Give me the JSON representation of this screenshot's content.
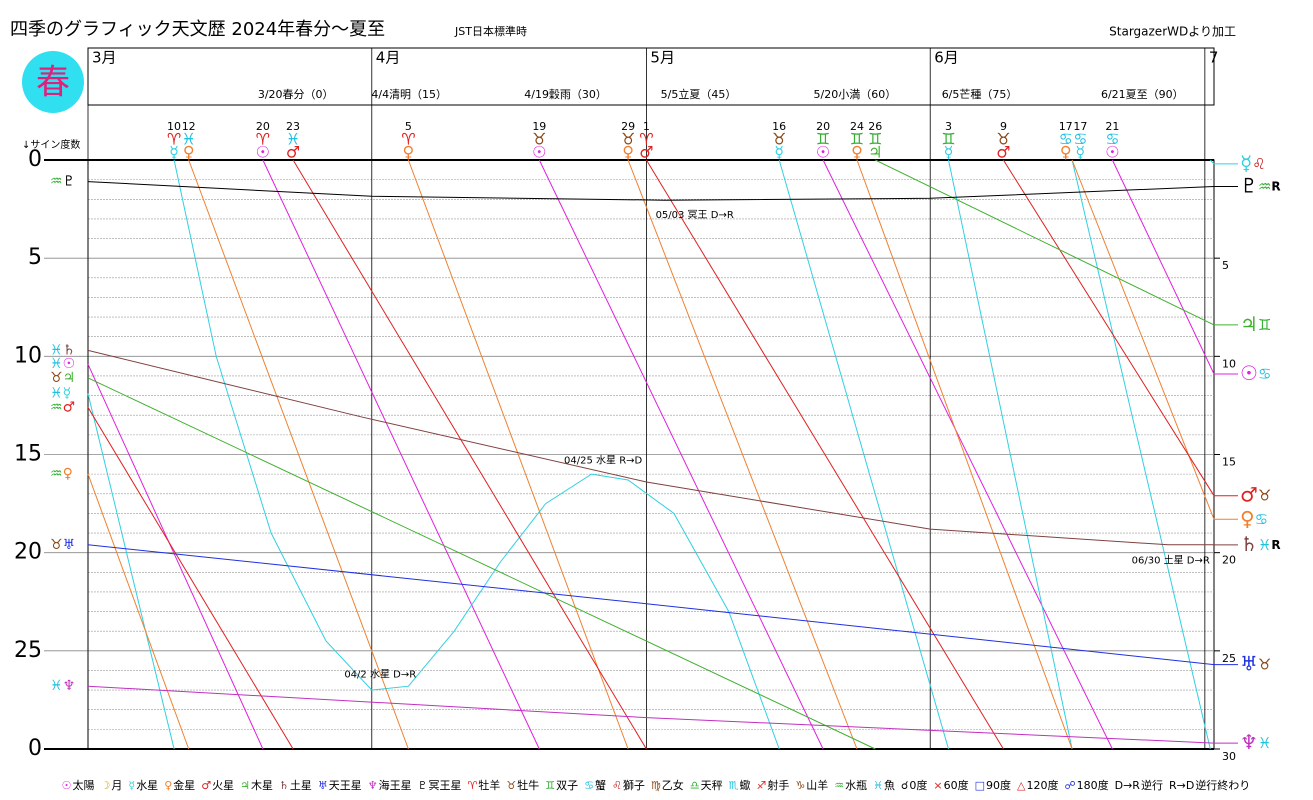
{
  "header": {
    "title": "四季のグラフィック天文歴 2024年春分～夏至",
    "timezone": "JST日本標準時",
    "credit": "StargazerWDより加工",
    "season": "春"
  },
  "chart_data": {
    "type": "line",
    "y_axis_label": "↓サイン度数",
    "xlim": [
      0,
      123
    ],
    "xticks": [
      {
        "value": 0,
        "label": "3月"
      },
      {
        "value": 31,
        "label": "4月"
      },
      {
        "value": 61,
        "label": "5月"
      },
      {
        "value": 92,
        "label": "6月"
      },
      {
        "value": 122,
        "label": "7"
      }
    ],
    "ylim": [
      0,
      30
    ],
    "y_inverted": true,
    "yticks": [
      0,
      5,
      10,
      15,
      20,
      25,
      {
        "value": 30,
        "label": "0"
      }
    ],
    "minor_yticks": [
      1,
      2,
      3,
      4,
      6,
      7,
      8,
      9,
      11,
      12,
      13,
      14,
      16,
      17,
      18,
      19,
      21,
      22,
      23,
      24,
      26,
      27,
      28,
      29
    ],
    "y2lim": [
      0,
      30
    ],
    "y2ticks": [
      5,
      10,
      15,
      20,
      25,
      30
    ],
    "solar_terms": [
      {
        "label": "3/20春分（0）",
        "x": 19.1
      },
      {
        "label": "4/4清明（15）",
        "x": 31.5
      },
      {
        "label": "4/19穀雨（30）",
        "x": 48.2
      },
      {
        "label": "5/5立夏（45）",
        "x": 63.1
      },
      {
        "label": "5/20小満（60）",
        "x": 79.8
      },
      {
        "label": "6/5芒種（75）",
        "x": 93.8
      },
      {
        "label": "6/21夏至（90）",
        "x": 111.2
      }
    ],
    "sign_colors": {
      "♈": "#e02020",
      "♉": "#8b4513",
      "♊": "#30b030",
      "♋": "#20c0e0",
      "♌": "#c02020",
      "♍": "#8b4513",
      "♎": "#30b030",
      "♏": "#20c0e0",
      "♐": "#e02020",
      "♑": "#8b4513",
      "♒": "#30b030",
      "♓": "#20c0e0"
    },
    "ingresses": [
      {
        "day": "10",
        "sign": "♈",
        "planet": "☿",
        "x": 9.4
      },
      {
        "day": "12",
        "sign": "♓",
        "planet": "♀",
        "x": 11
      },
      {
        "day": "20",
        "sign": "♈",
        "planet": "☉",
        "x": 19.1
      },
      {
        "day": "23",
        "sign": "♓",
        "planet": "♂",
        "x": 22.4
      },
      {
        "day": "5",
        "sign": "♈",
        "planet": "♀",
        "x": 35
      },
      {
        "day": "19",
        "sign": "♉",
        "planet": "☉",
        "x": 49.3
      },
      {
        "day": "29",
        "sign": "♉",
        "planet": "♀",
        "x": 59
      },
      {
        "day": "1",
        "sign": "♈",
        "planet": "♂",
        "x": 61
      },
      {
        "day": "16",
        "sign": "♉",
        "planet": "☿",
        "x": 75.5
      },
      {
        "day": "20",
        "sign": "♊",
        "planet": "☉",
        "x": 80.3
      },
      {
        "day": "24",
        "sign": "♊",
        "planet": "♀",
        "x": 84
      },
      {
        "day": "26",
        "sign": "♊",
        "planet": "♃",
        "x": 86
      },
      {
        "day": "3",
        "sign": "♊",
        "planet": "☿",
        "x": 94
      },
      {
        "day": "9",
        "sign": "♉",
        "planet": "♂",
        "x": 100
      },
      {
        "day": "17",
        "sign": "♋",
        "planet": "♀",
        "x": 106.8
      },
      {
        "day": "17",
        "sign": "♋",
        "planet": "☿",
        "x": 108.4
      },
      {
        "day": "21",
        "sign": "♋",
        "planet": "☉",
        "x": 111.9
      }
    ],
    "series": [
      {
        "symbol": "☉",
        "color": "#e020e0",
        "start_sign": "♓",
        "end_sign": "♋",
        "x": [
          0,
          19.1,
          19.1,
          19.1,
          49.3,
          49.3,
          49.3,
          80.3,
          80.3,
          80.3,
          111.9,
          111.9,
          111.9,
          123
        ],
        "values": [
          10.4,
          30,
          null,
          0,
          30,
          null,
          0,
          30,
          null,
          0,
          30,
          null,
          0,
          10.9
        ]
      },
      {
        "symbol": "☿",
        "color": "#30d0e0",
        "start_sign": "♓",
        "end_sign": "♌",
        "x": [
          0,
          9.4,
          9.4,
          9.4,
          14,
          20,
          26,
          31,
          35,
          40,
          45,
          50,
          55,
          59,
          64,
          70,
          75.5,
          75.5,
          75.5,
          94,
          94,
          94,
          107.5,
          107.5,
          107.5,
          122.6,
          122.6,
          122.6,
          123
        ],
        "values": [
          11.9,
          30,
          null,
          0,
          10,
          19,
          24.5,
          27,
          26.8,
          24,
          20.5,
          17.5,
          16,
          16.3,
          18,
          23,
          30,
          null,
          0,
          30,
          null,
          0,
          30,
          null,
          0,
          30,
          null,
          0,
          0.2
        ]
      },
      {
        "symbol": "♀",
        "color": "#f08030",
        "start_sign": "♒",
        "end_sign": "♋",
        "x": [
          0,
          11,
          11,
          11,
          35,
          35,
          35,
          59,
          59,
          59,
          84,
          84,
          84,
          107.5,
          107.5,
          107.5,
          123
        ],
        "values": [
          16,
          30,
          null,
          0,
          30,
          null,
          0,
          30,
          null,
          0,
          30,
          null,
          0,
          30,
          null,
          0,
          18.3
        ]
      },
      {
        "symbol": "♂",
        "color": "#e02020",
        "start_sign": "♒",
        "end_sign": "♉",
        "x": [
          0,
          22.4,
          22.4,
          22.4,
          61,
          61,
          61,
          100,
          100,
          100,
          123
        ],
        "values": [
          12.6,
          30,
          null,
          0,
          30,
          null,
          0,
          30,
          null,
          0,
          17.1
        ]
      },
      {
        "symbol": "♃",
        "color": "#40b030",
        "start_sign": "♉",
        "end_sign": "♊",
        "x": [
          0,
          86,
          86,
          86,
          123
        ],
        "values": [
          11.1,
          30,
          null,
          0,
          8.4
        ]
      },
      {
        "symbol": "♄",
        "color": "#804040",
        "start_sign": "♓",
        "end_sign": "♓",
        "end_flag": "R",
        "x": [
          0,
          30,
          61,
          92,
          118,
          123
        ],
        "values": [
          9.7,
          13.1,
          16.4,
          18.8,
          19.6,
          19.6
        ]
      },
      {
        "symbol": "♅",
        "color": "#2030e0",
        "start_sign": "♉",
        "end_sign": "♉",
        "x": [
          0,
          61,
          123
        ],
        "values": [
          19.6,
          22.6,
          25.7
        ]
      },
      {
        "symbol": "♆",
        "color": "#c030c0",
        "start_sign": "♓",
        "end_sign": "♓",
        "x": [
          0,
          61,
          123
        ],
        "values": [
          26.8,
          28.4,
          29.7
        ]
      },
      {
        "symbol": "♇",
        "color": "#000000",
        "start_sign": "♒",
        "end_sign": "♒",
        "end_flag": "R",
        "x": [
          0,
          31,
          63,
          92,
          123
        ],
        "values": [
          1.1,
          1.85,
          2.05,
          1.95,
          1.35
        ]
      }
    ],
    "annotations": [
      {
        "text": "04/2 水星 D→R",
        "x": 28,
        "y": 26.2
      },
      {
        "text": "04/25 水星 R→D",
        "x": 52,
        "y": 15.3
      },
      {
        "text": "05/03 冥王 D→R",
        "x": 62,
        "y": 2.8
      },
      {
        "text": "06/30 土星 D→R",
        "x": 114,
        "y": 20.4
      }
    ],
    "legend": [
      {
        "symbol": "☉",
        "label": "太陽",
        "color": "#e020e0"
      },
      {
        "symbol": "☽",
        "label": "月",
        "color": "#e0a000"
      },
      {
        "symbol": "☿",
        "label": "水星",
        "color": "#30d0e0"
      },
      {
        "symbol": "♀",
        "label": "金星",
        "color": "#f08030"
      },
      {
        "symbol": "♂",
        "label": "火星",
        "color": "#e02020"
      },
      {
        "symbol": "♃",
        "label": "木星",
        "color": "#40b030"
      },
      {
        "symbol": "♄",
        "label": "土星",
        "color": "#804040"
      },
      {
        "symbol": "♅",
        "label": "天王星",
        "color": "#2030e0"
      },
      {
        "symbol": "♆",
        "label": "海王星",
        "color": "#c030c0"
      },
      {
        "symbol": "♇",
        "label": "冥王星",
        "color": "#000000"
      },
      {
        "symbol": "♈",
        "label": "牡羊",
        "color": "#e02020"
      },
      {
        "symbol": "♉",
        "label": "牡牛",
        "color": "#8b4513"
      },
      {
        "symbol": "♊",
        "label": "双子",
        "color": "#30b030"
      },
      {
        "symbol": "♋",
        "label": "蟹",
        "color": "#20c0e0"
      },
      {
        "symbol": "♌",
        "label": "獅子",
        "color": "#c02020"
      },
      {
        "symbol": "♍",
        "label": "乙女",
        "color": "#8b4513"
      },
      {
        "symbol": "♎",
        "label": "天秤",
        "color": "#30b030"
      },
      {
        "symbol": "♏",
        "label": "蠍",
        "color": "#20c0e0"
      },
      {
        "symbol": "♐",
        "label": "射手",
        "color": "#e02020"
      },
      {
        "symbol": "♑",
        "label": "山羊",
        "color": "#8b4513"
      },
      {
        "symbol": "♒",
        "label": "水瓶",
        "color": "#30b030"
      },
      {
        "symbol": "♓",
        "label": "魚",
        "color": "#20c0e0"
      },
      {
        "symbol": "☌",
        "label": "0度",
        "color": "#000000"
      },
      {
        "symbol": "×",
        "label": "60度",
        "color": "#e02020"
      },
      {
        "symbol": "□",
        "label": "90度",
        "color": "#2030e0"
      },
      {
        "symbol": "△",
        "label": "120度",
        "color": "#e02020"
      },
      {
        "symbol": "☍",
        "label": "180度",
        "color": "#2030e0"
      },
      {
        "symbol": "D→R",
        "label": "逆行",
        "color": "#000000"
      },
      {
        "symbol": "R→D",
        "label": "逆行終わり",
        "color": "#000000"
      }
    ]
  }
}
